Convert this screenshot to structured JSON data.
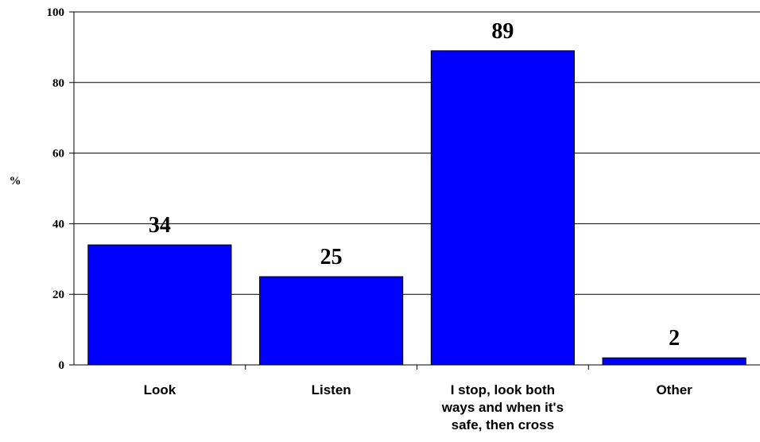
{
  "chart_data": {
    "type": "bar",
    "categories": [
      [
        "Look"
      ],
      [
        "Listen"
      ],
      [
        "I stop, look both",
        "ways and when it's",
        "safe, then cross"
      ],
      [
        "Other"
      ]
    ],
    "values": [
      34,
      25,
      89,
      2
    ],
    "data_labels": [
      "34",
      "25",
      "89",
      "2"
    ],
    "ylabel": "%",
    "xlabel": "",
    "title": "",
    "ylim": [
      0,
      100
    ],
    "yticks": [
      0,
      20,
      40,
      60,
      80,
      100
    ],
    "grid": true,
    "bar_color": "#0000ff",
    "bar_edge_color": "#000000"
  }
}
